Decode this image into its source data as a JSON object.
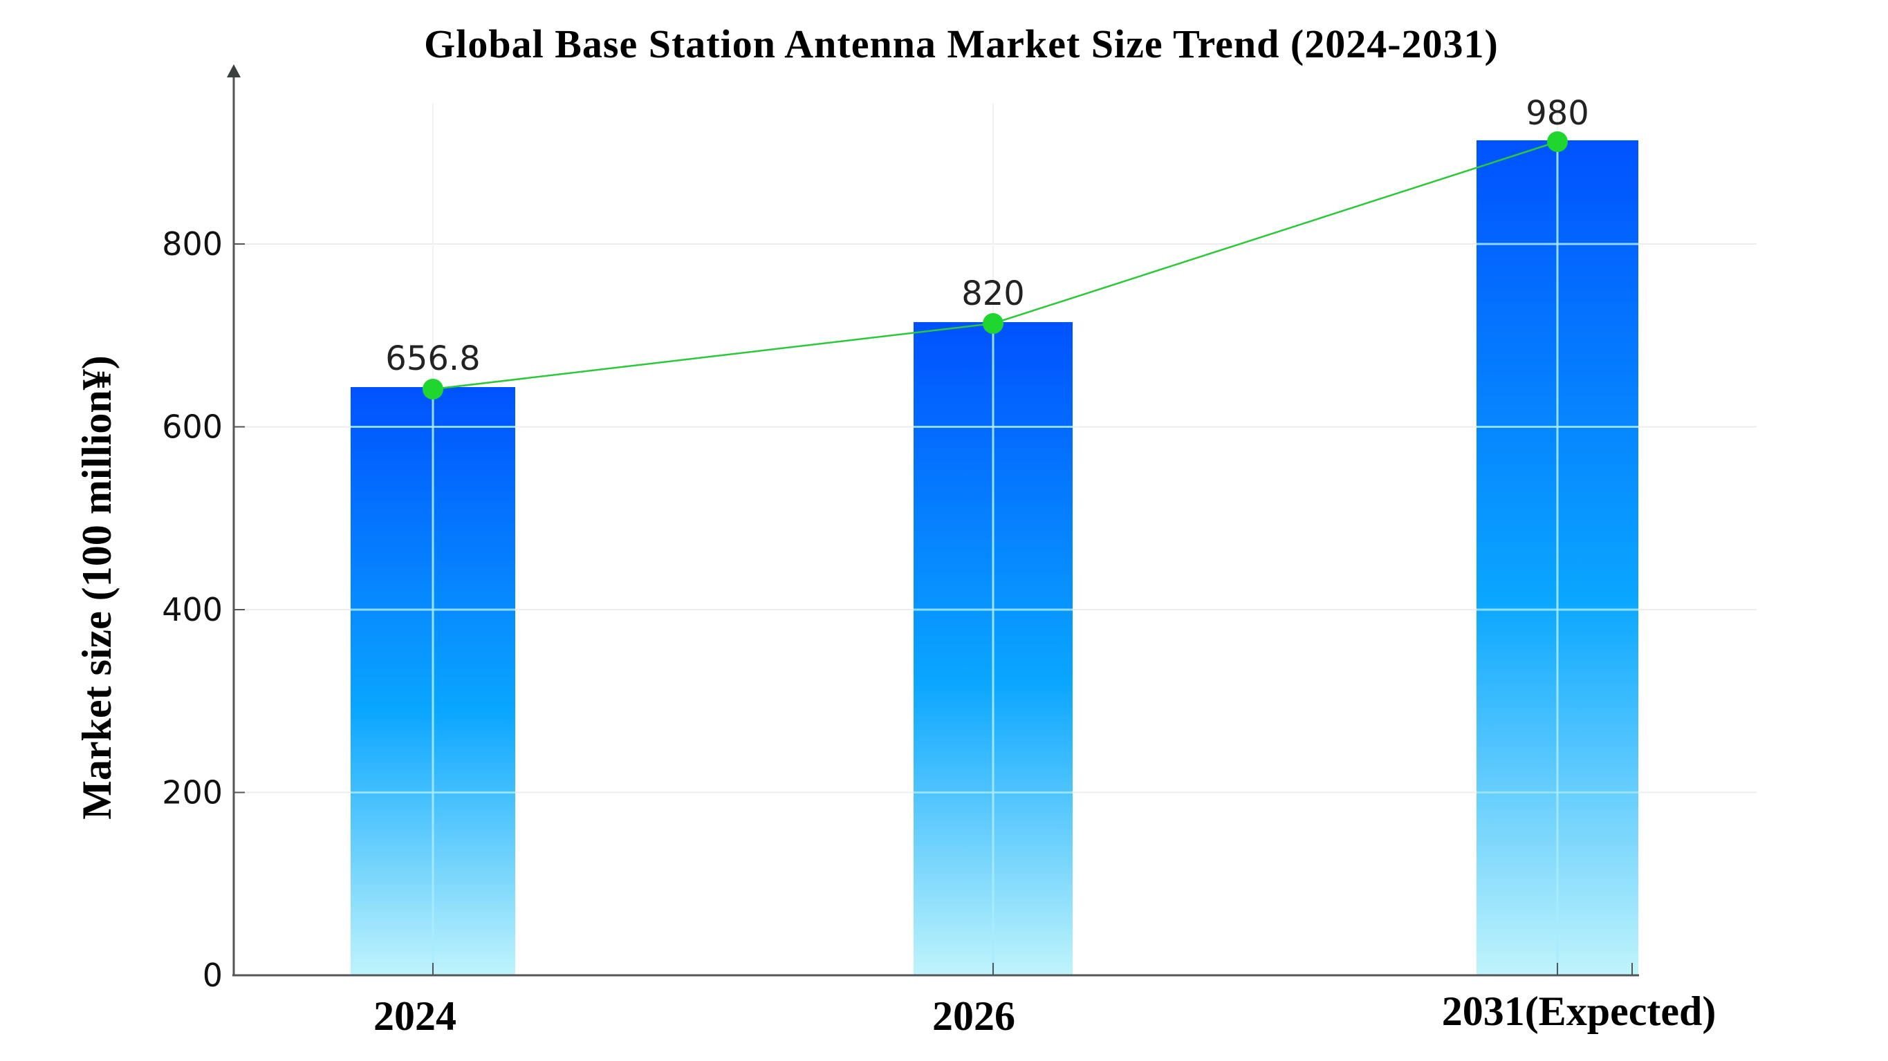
{
  "chart_data": {
    "type": "bar",
    "title": "Global Base Station Antenna Market Size Trend  (2024-2031)",
    "xlabel": "",
    "ylabel": "Market size (100 million¥)",
    "categories": [
      "2024",
      "2026",
      "2031(Expected)"
    ],
    "values": [
      656.8,
      820,
      980
    ],
    "data_labels": [
      "656.8",
      "820",
      "980"
    ],
    "overlay_line": {
      "type": "line",
      "color": "#22cc33",
      "marker": "circle",
      "values": [
        656.8,
        820,
        980
      ]
    },
    "yticks": [
      0,
      200,
      400,
      600,
      800
    ],
    "ytick_labels": [
      "0",
      "200",
      "400",
      "600",
      "800"
    ],
    "ylim": [
      0,
      1050
    ],
    "grid": true,
    "legend": null,
    "bar_gradient": {
      "top": "#0055ff",
      "bottom": "#b8f2fb"
    }
  },
  "colors": {
    "bar_top": "#0055ff",
    "bar_mid": "#0aa6ff",
    "bar_bottom": "#b8f2fb",
    "line": "#22cc33",
    "marker": "#1ed62e",
    "axis": "#555555",
    "gridline": "#e9e9e9"
  }
}
